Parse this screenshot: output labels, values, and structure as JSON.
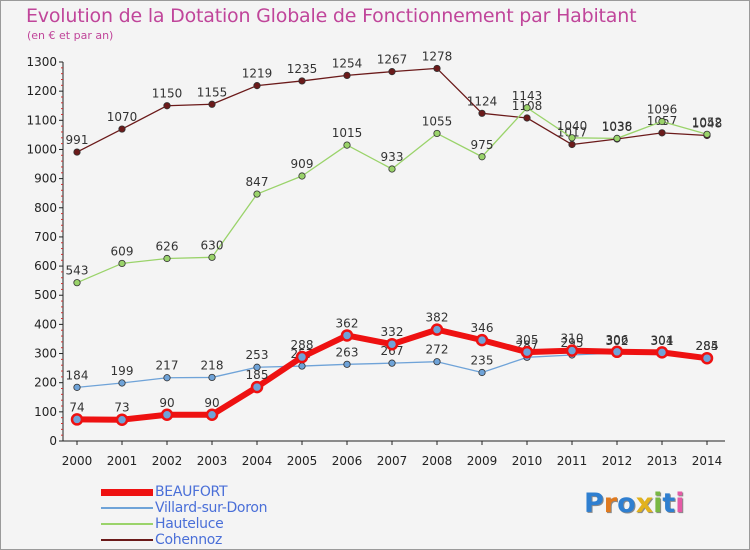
{
  "title": "Evolution de la Dotation Globale de Fonctionnement par Habitant",
  "subtitle": "(en € et par an)",
  "logo_text": "Proxiti",
  "chart_data": {
    "type": "line",
    "title": "Evolution de la Dotation Globale de Fonctionnement par Habitant",
    "subtitle": "(en € et par an)",
    "x": [
      "2000",
      "2001",
      "2002",
      "2003",
      "2004",
      "2005",
      "2006",
      "2007",
      "2008",
      "2009",
      "2010",
      "2011",
      "2012",
      "2013",
      "2014"
    ],
    "ylim": [
      0,
      1300
    ],
    "yticks": [
      0,
      100,
      200,
      300,
      400,
      500,
      600,
      700,
      800,
      900,
      1000,
      1100,
      1200,
      1300
    ],
    "grid": false,
    "legend": "bottom-left",
    "series": [
      {
        "name": "Cohennoz",
        "color": "#6b1a1a",
        "width": 1.3,
        "values": [
          991,
          1070,
          1150,
          1155,
          1219,
          1235,
          1254,
          1267,
          1278,
          1124,
          1108,
          1017,
          1036,
          1057,
          1048
        ]
      },
      {
        "name": "Hauteluce",
        "color": "#9ad36a",
        "width": 1.3,
        "values": [
          543,
          609,
          626,
          630,
          847,
          909,
          1015,
          933,
          1055,
          975,
          1143,
          1040,
          1038,
          1096,
          1052
        ]
      },
      {
        "name": "Villard-sur-Doron",
        "color": "#6fa3d8",
        "width": 1.3,
        "values": [
          184,
          199,
          217,
          218,
          253,
          257,
          263,
          267,
          272,
          235,
          287,
          295,
          302,
          301,
          285
        ]
      },
      {
        "name": "BEAUFORT",
        "color": "#ee1111",
        "width": 6,
        "values": [
          74,
          73,
          90,
          90,
          185,
          288,
          362,
          332,
          382,
          346,
          305,
          310,
          306,
          304,
          284
        ]
      }
    ],
    "legend_order": [
      "BEAUFORT",
      "Villard-sur-Doron",
      "Hauteluce",
      "Cohennoz"
    ]
  }
}
